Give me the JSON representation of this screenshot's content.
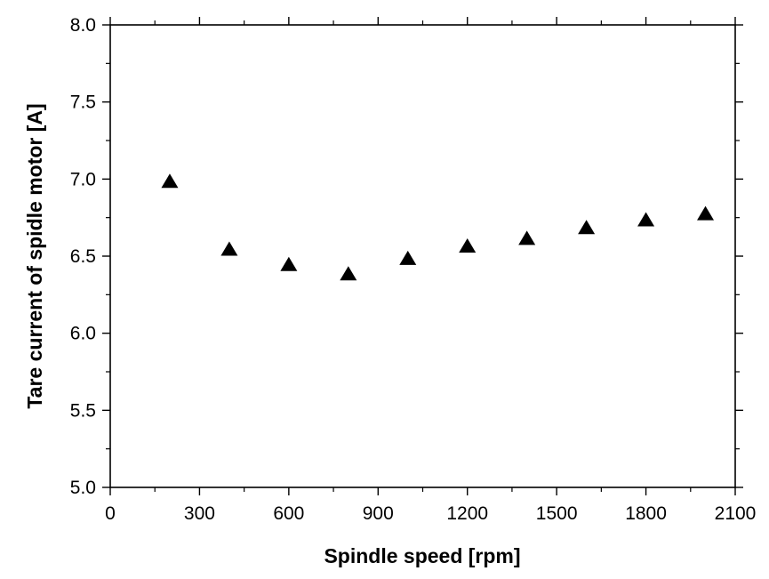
{
  "chart_data": {
    "type": "scatter",
    "title": "",
    "xlabel": "Spindle speed [rpm]",
    "ylabel": "Tare current of spidle motor [A]",
    "xlim": [
      0,
      2100
    ],
    "ylim": [
      5.0,
      8.0
    ],
    "xticks": [
      0,
      300,
      600,
      900,
      1200,
      1500,
      1800,
      2100
    ],
    "yticks": [
      5.0,
      5.5,
      6.0,
      6.5,
      7.0,
      7.5,
      8.0
    ],
    "grid": false,
    "legend": "none",
    "marker": "triangle",
    "marker_color": "#000000",
    "series": [
      {
        "x": [
          200,
          400,
          600,
          800,
          1000,
          1200,
          1400,
          1600,
          1800,
          2000
        ],
        "y": [
          6.98,
          6.54,
          6.44,
          6.38,
          6.48,
          6.56,
          6.61,
          6.68,
          6.73,
          6.77
        ]
      }
    ]
  }
}
